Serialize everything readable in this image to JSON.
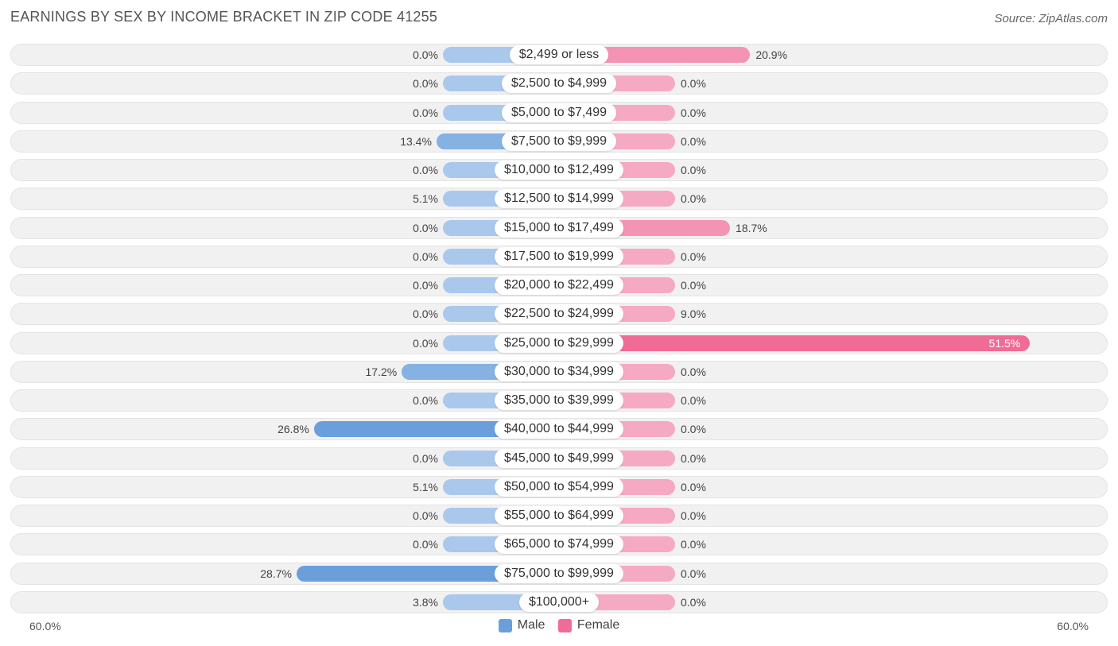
{
  "chart_data": {
    "type": "bar",
    "orientation": "horizontal-diverging",
    "title": "EARNINGS BY SEX BY INCOME BRACKET IN ZIP CODE 41255",
    "source": "Source: ZipAtlas.com",
    "categories": [
      "$2,499 or less",
      "$2,500 to $4,999",
      "$5,000 to $7,499",
      "$7,500 to $9,999",
      "$10,000 to $12,499",
      "$12,500 to $14,999",
      "$15,000 to $17,499",
      "$17,500 to $19,999",
      "$20,000 to $22,499",
      "$22,500 to $24,999",
      "$25,000 to $29,999",
      "$30,000 to $34,999",
      "$35,000 to $39,999",
      "$40,000 to $44,999",
      "$45,000 to $49,999",
      "$50,000 to $54,999",
      "$55,000 to $64,999",
      "$65,000 to $74,999",
      "$75,000 to $99,999",
      "$100,000+"
    ],
    "series": [
      {
        "name": "Male",
        "color": "#6a9fdc",
        "values": [
          0.0,
          0.0,
          0.0,
          13.4,
          0.0,
          5.1,
          0.0,
          0.0,
          0.0,
          0.0,
          0.0,
          17.2,
          0.0,
          26.8,
          0.0,
          5.1,
          0.0,
          0.0,
          28.7,
          3.8
        ],
        "labels": [
          "0.0%",
          "0.0%",
          "0.0%",
          "13.4%",
          "0.0%",
          "5.1%",
          "0.0%",
          "0.0%",
          "0.0%",
          "0.0%",
          "0.0%",
          "17.2%",
          "0.0%",
          "26.8%",
          "0.0%",
          "5.1%",
          "0.0%",
          "0.0%",
          "28.7%",
          "3.8%"
        ]
      },
      {
        "name": "Female",
        "color": "#f06b96",
        "values": [
          20.9,
          0.0,
          0.0,
          0.0,
          0.0,
          0.0,
          18.7,
          0.0,
          0.0,
          9.0,
          51.5,
          0.0,
          0.0,
          0.0,
          0.0,
          0.0,
          0.0,
          0.0,
          0.0,
          0.0
        ],
        "labels": [
          "20.9%",
          "0.0%",
          "0.0%",
          "0.0%",
          "0.0%",
          "0.0%",
          "18.7%",
          "0.0%",
          "0.0%",
          "9.0%",
          "51.5%",
          "0.0%",
          "0.0%",
          "0.0%",
          "0.0%",
          "0.0%",
          "0.0%",
          "0.0%",
          "0.0%",
          "0.0%"
        ]
      }
    ],
    "xlim": [
      -60,
      60
    ],
    "axis_labels": {
      "left": "60.0%",
      "right": "60.0%"
    },
    "legend_position": "bottom-center",
    "grid": false
  }
}
